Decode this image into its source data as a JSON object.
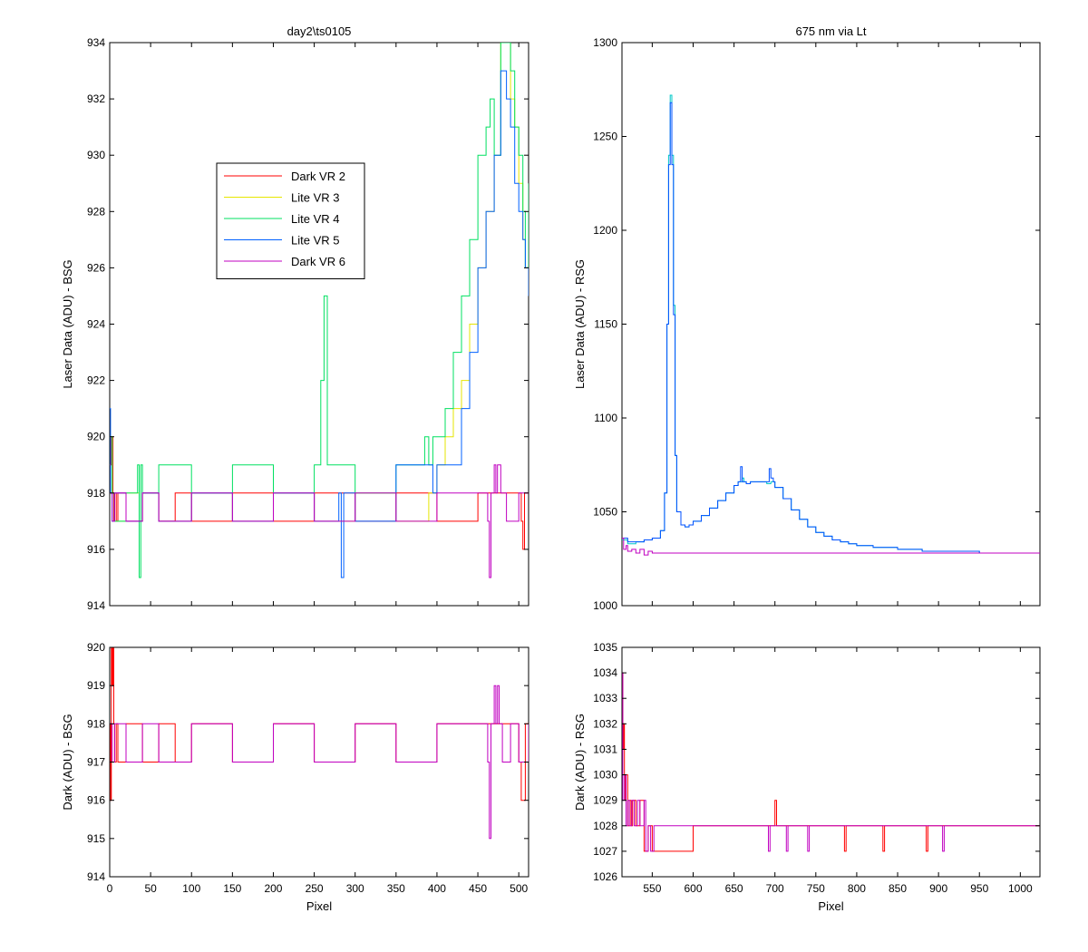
{
  "chart_data": [
    {
      "type": "line",
      "title": "day2\\ts0105",
      "xlabel": "",
      "ylabel": "Laser Data (ADU) - BSG",
      "xlim": [
        0,
        512
      ],
      "ylim": [
        914,
        934
      ],
      "xticks": [
        0,
        50,
        100,
        150,
        200,
        250,
        300,
        350,
        400,
        450,
        500
      ],
      "xtick_labels": [
        "",
        "",
        "",
        "",
        "",
        "",
        "",
        "",
        "",
        "",
        ""
      ],
      "yticks": [
        914,
        916,
        918,
        920,
        922,
        924,
        926,
        928,
        930,
        932,
        934
      ],
      "ytick_labels": [
        "914",
        "916",
        "918",
        "920",
        "922",
        "924",
        "926",
        "928",
        "930",
        "932",
        "934"
      ],
      "legend": "inside",
      "series": [
        {
          "name": "Dark VR 2",
          "color": "#ff0000",
          "x": [
            0,
            2,
            4,
            5,
            6,
            8,
            10,
            20,
            40,
            60,
            80,
            100,
            150,
            200,
            250,
            300,
            350,
            400,
            450,
            500,
            503,
            505,
            507,
            512
          ],
          "y": [
            919,
            920,
            918,
            917,
            918,
            917,
            918,
            917,
            918,
            917,
            918,
            917,
            918,
            917,
            918,
            917,
            918,
            917,
            918,
            918,
            917,
            916,
            918,
            918
          ]
        },
        {
          "name": "Lite VR 3",
          "color": "#e6e600",
          "x": [
            0,
            3,
            6,
            20,
            36,
            40,
            60,
            100,
            150,
            200,
            250,
            300,
            350,
            390,
            400,
            410,
            420,
            430,
            440,
            450,
            460,
            470,
            478,
            485,
            490,
            495,
            500,
            505,
            508,
            512
          ],
          "y": [
            920,
            918,
            917,
            918,
            917,
            918,
            917,
            918,
            917,
            918,
            917,
            918,
            917,
            918,
            919,
            920,
            921,
            922,
            924,
            926,
            928,
            930,
            934,
            934,
            932,
            931,
            929,
            927,
            926,
            928
          ]
        },
        {
          "name": "Lite VR 4",
          "color": "#00e060",
          "x": [
            0,
            3,
            6,
            20,
            34,
            36,
            38,
            40,
            60,
            100,
            150,
            200,
            250,
            258,
            262,
            266,
            300,
            350,
            380,
            385,
            390,
            395,
            400,
            410,
            420,
            430,
            440,
            450,
            460,
            465,
            470,
            478,
            485,
            490,
            495,
            500,
            505,
            508,
            512
          ],
          "y": [
            920,
            918,
            917,
            918,
            919,
            915,
            919,
            918,
            919,
            918,
            919,
            918,
            919,
            922,
            925,
            919,
            918,
            919,
            919,
            920,
            919,
            920,
            920,
            921,
            923,
            925,
            927,
            930,
            931,
            932,
            930,
            934,
            934,
            933,
            931,
            930,
            928,
            926,
            929
          ]
        },
        {
          "name": "Lite VR 5",
          "color": "#0060ff",
          "x": [
            0,
            1,
            3,
            6,
            20,
            40,
            60,
            100,
            150,
            200,
            250,
            280,
            283,
            286,
            300,
            350,
            395,
            400,
            420,
            430,
            440,
            450,
            460,
            470,
            478,
            485,
            490,
            495,
            500,
            505,
            508,
            512
          ],
          "y": [
            921,
            918,
            917,
            918,
            917,
            918,
            917,
            918,
            917,
            918,
            917,
            918,
            915,
            918,
            917,
            919,
            918,
            919,
            919,
            921,
            923,
            926,
            928,
            930,
            933,
            932,
            931,
            929,
            928,
            927,
            926,
            925
          ]
        },
        {
          "name": "Dark VR 6",
          "color": "#c000c0",
          "x": [
            0,
            3,
            6,
            20,
            40,
            60,
            100,
            150,
            200,
            250,
            300,
            350,
            400,
            450,
            462,
            464,
            466,
            470,
            472,
            474,
            478,
            485,
            500,
            512
          ],
          "y": [
            918,
            917,
            918,
            917,
            918,
            917,
            918,
            917,
            918,
            917,
            918,
            917,
            918,
            918,
            917,
            915,
            918,
            919,
            918,
            919,
            918,
            917,
            918,
            918
          ]
        }
      ]
    },
    {
      "type": "line",
      "title": "675 nm via Lt",
      "xlabel": "",
      "ylabel": "Laser Data (ADU) - RSG",
      "xlim": [
        513,
        1024
      ],
      "ylim": [
        1000,
        1300
      ],
      "xticks": [
        550,
        600,
        650,
        700,
        750,
        800,
        850,
        900,
        950,
        1000
      ],
      "xtick_labels": [
        "",
        "",
        "",
        "",
        "",
        "",
        "",
        "",
        "",
        ""
      ],
      "yticks": [
        1000,
        1050,
        1100,
        1150,
        1200,
        1250,
        1300
      ],
      "ytick_labels": [
        "1000",
        "1050",
        "1100",
        "1150",
        "1200",
        "1250",
        "1300"
      ],
      "series": [
        {
          "name": "",
          "color": "#00c8c8",
          "x": [
            513,
            520,
            530,
            540,
            550,
            560,
            565,
            568,
            570,
            572,
            574,
            576,
            578,
            580,
            585,
            590,
            595,
            600,
            610,
            620,
            630,
            640,
            650,
            655,
            660,
            662,
            665,
            670,
            690,
            695,
            700,
            710,
            720,
            730,
            740,
            750,
            760,
            770,
            780,
            790,
            800,
            820,
            850,
            880,
            900,
            950,
            1000,
            1024
          ],
          "y": [
            1035,
            1033,
            1034,
            1035,
            1036,
            1040,
            1060,
            1150,
            1240,
            1272,
            1240,
            1160,
            1080,
            1050,
            1043,
            1042,
            1043,
            1045,
            1048,
            1052,
            1056,
            1060,
            1064,
            1066,
            1068,
            1066,
            1065,
            1066,
            1065,
            1066,
            1063,
            1057,
            1051,
            1046,
            1042,
            1039,
            1037,
            1035,
            1034,
            1033,
            1032,
            1031,
            1030,
            1029,
            1029,
            1028,
            1028,
            1028
          ]
        },
        {
          "name": "",
          "color": "#0050ff",
          "x": [
            513,
            520,
            530,
            540,
            550,
            560,
            565,
            568,
            570,
            572,
            574,
            576,
            578,
            580,
            585,
            590,
            595,
            600,
            610,
            620,
            630,
            640,
            650,
            655,
            658,
            660,
            662,
            665,
            670,
            690,
            693,
            695,
            698,
            700,
            710,
            720,
            730,
            740,
            750,
            760,
            770,
            780,
            790,
            800,
            820,
            850,
            880,
            900,
            950,
            1000,
            1024
          ],
          "y": [
            1036,
            1034,
            1034,
            1035,
            1036,
            1040,
            1060,
            1150,
            1235,
            1268,
            1235,
            1155,
            1080,
            1050,
            1043,
            1042,
            1043,
            1045,
            1048,
            1052,
            1056,
            1060,
            1064,
            1066,
            1074,
            1066,
            1066,
            1065,
            1066,
            1066,
            1073,
            1068,
            1066,
            1063,
            1057,
            1051,
            1046,
            1042,
            1039,
            1037,
            1035,
            1034,
            1033,
            1032,
            1031,
            1030,
            1029,
            1029,
            1028,
            1028,
            1028
          ]
        },
        {
          "name": "",
          "color": "#c000c0",
          "x": [
            513,
            515,
            518,
            520,
            525,
            530,
            535,
            540,
            545,
            550,
            700,
            1024
          ],
          "y": [
            1036,
            1030,
            1032,
            1029,
            1030,
            1028,
            1030,
            1027,
            1029,
            1028,
            1028,
            1028
          ]
        }
      ]
    },
    {
      "type": "line",
      "title": "",
      "xlabel": "Pixel",
      "ylabel": "Dark (ADU) - BSG",
      "xlim": [
        0,
        512
      ],
      "ylim": [
        914,
        920
      ],
      "xticks": [
        0,
        50,
        100,
        150,
        200,
        250,
        300,
        350,
        400,
        450,
        500
      ],
      "xtick_labels": [
        "0",
        "50",
        "100",
        "150",
        "200",
        "250",
        "300",
        "350",
        "400",
        "450",
        "500"
      ],
      "yticks": [
        914,
        915,
        916,
        917,
        918,
        919,
        920
      ],
      "ytick_labels": [
        "914",
        "915",
        "916",
        "917",
        "918",
        "919",
        "920"
      ],
      "series": [
        {
          "name": "",
          "color": "#ff0000",
          "x": [
            0,
            1,
            2,
            3,
            4,
            5,
            6,
            8,
            10,
            20,
            40,
            60,
            80,
            100,
            150,
            200,
            250,
            300,
            350,
            400,
            450,
            500,
            503,
            506,
            508,
            512
          ],
          "y": [
            918,
            916,
            920,
            919,
            920,
            918,
            917,
            918,
            917,
            918,
            917,
            918,
            917,
            918,
            917,
            918,
            917,
            918,
            917,
            918,
            918,
            917,
            916,
            916,
            918,
            918
          ]
        },
        {
          "name": "",
          "color": "#c000c0",
          "x": [
            0,
            3,
            6,
            20,
            40,
            60,
            100,
            150,
            200,
            250,
            300,
            350,
            400,
            450,
            462,
            464,
            466,
            470,
            472,
            474,
            476,
            480,
            490,
            500,
            512
          ],
          "y": [
            918,
            917,
            918,
            917,
            918,
            917,
            918,
            917,
            918,
            917,
            918,
            917,
            918,
            918,
            917,
            915,
            918,
            919,
            918,
            919,
            918,
            917,
            918,
            917,
            918
          ]
        }
      ]
    },
    {
      "type": "line",
      "title": "",
      "xlabel": "Pixel",
      "ylabel": "Dark (ADU) - RSG",
      "xlim": [
        513,
        1024
      ],
      "ylim": [
        1026,
        1035
      ],
      "xticks": [
        550,
        600,
        650,
        700,
        750,
        800,
        850,
        900,
        950,
        1000
      ],
      "xtick_labels": [
        "550",
        "600",
        "650",
        "700",
        "750",
        "800",
        "850",
        "900",
        "950",
        "1000"
      ],
      "yticks": [
        1026,
        1027,
        1028,
        1029,
        1030,
        1031,
        1032,
        1033,
        1034,
        1035
      ],
      "ytick_labels": [
        "1026",
        "1027",
        "1028",
        "1029",
        "1030",
        "1031",
        "1032",
        "1033",
        "1034",
        "1035"
      ],
      "series": [
        {
          "name": "",
          "color": "#ff0000",
          "x": [
            513,
            514,
            515,
            516,
            517,
            518,
            520,
            522,
            524,
            526,
            530,
            535,
            540,
            545,
            550,
            600,
            698,
            700,
            702,
            780,
            785,
            787,
            828,
            832,
            834,
            880,
            885,
            887,
            1024
          ],
          "y": [
            1034,
            1031,
            1032,
            1030,
            1029,
            1030,
            1028,
            1029,
            1028,
            1029,
            1028,
            1029,
            1027,
            1028,
            1027,
            1028,
            1028,
            1029,
            1028,
            1028,
            1027,
            1028,
            1028,
            1027,
            1028,
            1028,
            1027,
            1028,
            1028
          ]
        },
        {
          "name": "",
          "color": "#c000c0",
          "x": [
            513,
            514,
            516,
            518,
            520,
            522,
            525,
            528,
            532,
            535,
            540,
            542,
            545,
            548,
            552,
            555,
            690,
            692,
            694,
            712,
            714,
            716,
            738,
            740,
            742,
            903,
            905,
            907,
            1024
          ],
          "y": [
            1034,
            1029,
            1030,
            1028,
            1029,
            1028,
            1029,
            1028,
            1029,
            1028,
            1029,
            1027,
            1028,
            1027,
            1028,
            1028,
            1028,
            1027,
            1028,
            1028,
            1027,
            1028,
            1028,
            1027,
            1028,
            1028,
            1027,
            1028,
            1028
          ]
        }
      ]
    }
  ]
}
